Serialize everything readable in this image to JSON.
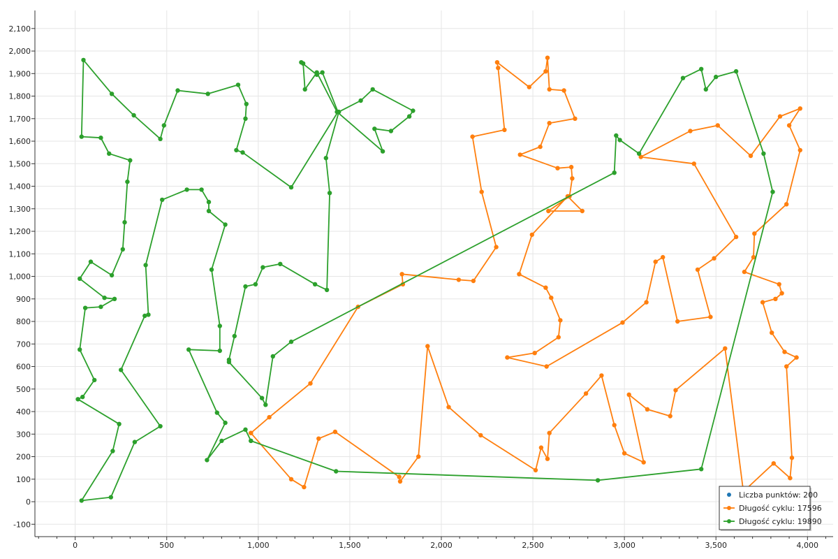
{
  "chart_data": {
    "type": "line",
    "xlim": [
      -220,
      4140
    ],
    "ylim": [
      -155,
      2180
    ],
    "xticks": [
      0,
      500,
      1000,
      1500,
      2000,
      2500,
      3000,
      3500,
      4000
    ],
    "yticks": [
      -100,
      0,
      100,
      200,
      300,
      400,
      500,
      600,
      700,
      800,
      900,
      1000,
      1100,
      1200,
      1300,
      1400,
      1500,
      1600,
      1700,
      1800,
      1900,
      2000,
      2100
    ],
    "grid": true,
    "legend_position": "bottom-right",
    "legend": [
      {
        "label": "Liczba punktów: 200",
        "color": "#1f77b4",
        "kind": "marker"
      },
      {
        "label": "Długość cyklu: 17596",
        "color": "#ff7f0e",
        "kind": "line"
      },
      {
        "label": "Długość cyklu: 19890",
        "color": "#2ca02c",
        "kind": "line"
      }
    ],
    "series": [
      {
        "name": "Długość cyklu: 17596",
        "color": "#ff7f0e",
        "closed": false,
        "points": [
          [
            960,
            305
          ],
          [
            1060,
            375
          ],
          [
            1285,
            525
          ],
          [
            1545,
            865
          ],
          [
            1790,
            965
          ],
          [
            1785,
            1010
          ],
          [
            2095,
            985
          ],
          [
            2175,
            980
          ],
          [
            2300,
            1130
          ],
          [
            2220,
            1375
          ],
          [
            2170,
            1620
          ],
          [
            2345,
            1650
          ],
          [
            2310,
            1925
          ],
          [
            2305,
            1950
          ],
          [
            2480,
            1840
          ],
          [
            2570,
            1910
          ],
          [
            2580,
            1970
          ],
          [
            2590,
            1830
          ],
          [
            2670,
            1825
          ],
          [
            2730,
            1700
          ],
          [
            2590,
            1680
          ],
          [
            2540,
            1575
          ],
          [
            2430,
            1540
          ],
          [
            2635,
            1480
          ],
          [
            2710,
            1485
          ],
          [
            2715,
            1435
          ],
          [
            2700,
            1355
          ],
          [
            2585,
            1290
          ],
          [
            2770,
            1290
          ],
          [
            2690,
            1355
          ],
          [
            2495,
            1185
          ],
          [
            2425,
            1010
          ],
          [
            2570,
            950
          ],
          [
            2600,
            905
          ],
          [
            2650,
            805
          ],
          [
            2640,
            730
          ],
          [
            2510,
            660
          ],
          [
            2360,
            640
          ],
          [
            2575,
            600
          ],
          [
            2990,
            795
          ],
          [
            3120,
            885
          ],
          [
            3170,
            1065
          ],
          [
            3210,
            1085
          ],
          [
            3290,
            800
          ],
          [
            3470,
            820
          ],
          [
            3400,
            1030
          ],
          [
            3490,
            1080
          ],
          [
            3610,
            1175
          ],
          [
            3380,
            1500
          ],
          [
            3090,
            1530
          ],
          [
            3360,
            1645
          ],
          [
            3510,
            1670
          ],
          [
            3690,
            1535
          ],
          [
            3850,
            1710
          ],
          [
            3960,
            1745
          ],
          [
            3900,
            1670
          ],
          [
            3960,
            1560
          ],
          [
            3885,
            1320
          ],
          [
            3710,
            1190
          ],
          [
            3705,
            1085
          ],
          [
            3655,
            1020
          ],
          [
            3845,
            965
          ],
          [
            3860,
            925
          ],
          [
            3825,
            900
          ],
          [
            3755,
            885
          ],
          [
            3805,
            750
          ],
          [
            3875,
            665
          ],
          [
            3940,
            640
          ],
          [
            3885,
            600
          ],
          [
            3915,
            195
          ],
          [
            3905,
            105
          ],
          [
            3815,
            170
          ],
          [
            3650,
            45
          ],
          [
            3550,
            680
          ],
          [
            3280,
            495
          ],
          [
            3250,
            380
          ],
          [
            3125,
            410
          ],
          [
            3025,
            475
          ],
          [
            3105,
            175
          ],
          [
            3000,
            215
          ],
          [
            2945,
            340
          ],
          [
            2875,
            560
          ],
          [
            2790,
            480
          ],
          [
            2590,
            305
          ],
          [
            2580,
            190
          ],
          [
            2545,
            240
          ],
          [
            2515,
            140
          ],
          [
            2215,
            295
          ],
          [
            2040,
            420
          ],
          [
            1925,
            690
          ],
          [
            1875,
            200
          ],
          [
            1775,
            90
          ],
          [
            1770,
            110
          ],
          [
            1420,
            310
          ],
          [
            1330,
            280
          ],
          [
            1250,
            65
          ],
          [
            1180,
            100
          ],
          [
            960,
            305
          ]
        ]
      },
      {
        "name": "Długość cyklu: 19890",
        "color": "#2ca02c",
        "closed": false,
        "points": [
          [
            960,
            270
          ],
          [
            1425,
            135
          ],
          [
            2855,
            95
          ],
          [
            3420,
            145
          ],
          [
            3810,
            1375
          ],
          [
            3760,
            1545
          ],
          [
            3610,
            1910
          ],
          [
            3500,
            1885
          ],
          [
            3445,
            1830
          ],
          [
            3420,
            1920
          ],
          [
            3320,
            1880
          ],
          [
            3080,
            1545
          ],
          [
            2975,
            1605
          ],
          [
            2955,
            1625
          ],
          [
            2945,
            1460
          ],
          [
            1180,
            710
          ],
          [
            1080,
            645
          ],
          [
            1040,
            430
          ],
          [
            1020,
            460
          ],
          [
            840,
            620
          ],
          [
            840,
            630
          ],
          [
            870,
            735
          ],
          [
            930,
            955
          ],
          [
            985,
            965
          ],
          [
            1025,
            1040
          ],
          [
            1120,
            1055
          ],
          [
            1310,
            965
          ],
          [
            1375,
            940
          ],
          [
            1390,
            1370
          ],
          [
            1370,
            1525
          ],
          [
            1440,
            1730
          ],
          [
            1560,
            1780
          ],
          [
            1625,
            1830
          ],
          [
            1845,
            1735
          ],
          [
            1825,
            1710
          ],
          [
            1725,
            1645
          ],
          [
            1635,
            1655
          ],
          [
            1680,
            1555
          ],
          [
            1430,
            1730
          ],
          [
            1320,
            1905
          ],
          [
            1255,
            1830
          ],
          [
            1245,
            1945
          ],
          [
            1235,
            1950
          ],
          [
            1320,
            1895
          ],
          [
            1350,
            1905
          ],
          [
            1435,
            1730
          ],
          [
            1180,
            1395
          ],
          [
            915,
            1550
          ],
          [
            880,
            1560
          ],
          [
            930,
            1700
          ],
          [
            935,
            1765
          ],
          [
            890,
            1850
          ],
          [
            725,
            1810
          ],
          [
            560,
            1825
          ],
          [
            485,
            1670
          ],
          [
            465,
            1610
          ],
          [
            320,
            1715
          ],
          [
            200,
            1810
          ],
          [
            45,
            1960
          ],
          [
            35,
            1620
          ],
          [
            140,
            1615
          ],
          [
            185,
            1545
          ],
          [
            300,
            1515
          ],
          [
            285,
            1420
          ],
          [
            270,
            1240
          ],
          [
            260,
            1120
          ],
          [
            200,
            1005
          ],
          [
            85,
            1065
          ],
          [
            25,
            990
          ],
          [
            160,
            905
          ],
          [
            215,
            900
          ],
          [
            140,
            865
          ],
          [
            55,
            860
          ],
          [
            25,
            675
          ],
          [
            105,
            540
          ],
          [
            40,
            465
          ],
          [
            15,
            455
          ],
          [
            240,
            345
          ],
          [
            205,
            225
          ],
          [
            35,
            5
          ],
          [
            195,
            20
          ],
          [
            325,
            265
          ],
          [
            465,
            335
          ],
          [
            250,
            585
          ],
          [
            380,
            825
          ],
          [
            400,
            830
          ],
          [
            385,
            1050
          ],
          [
            475,
            1340
          ],
          [
            610,
            1385
          ],
          [
            690,
            1385
          ],
          [
            730,
            1330
          ],
          [
            730,
            1290
          ],
          [
            820,
            1230
          ],
          [
            745,
            1030
          ],
          [
            790,
            780
          ],
          [
            790,
            670
          ],
          [
            620,
            675
          ],
          [
            775,
            395
          ],
          [
            820,
            350
          ],
          [
            720,
            185
          ],
          [
            800,
            270
          ],
          [
            930,
            320
          ],
          [
            960,
            270
          ]
        ]
      }
    ]
  }
}
